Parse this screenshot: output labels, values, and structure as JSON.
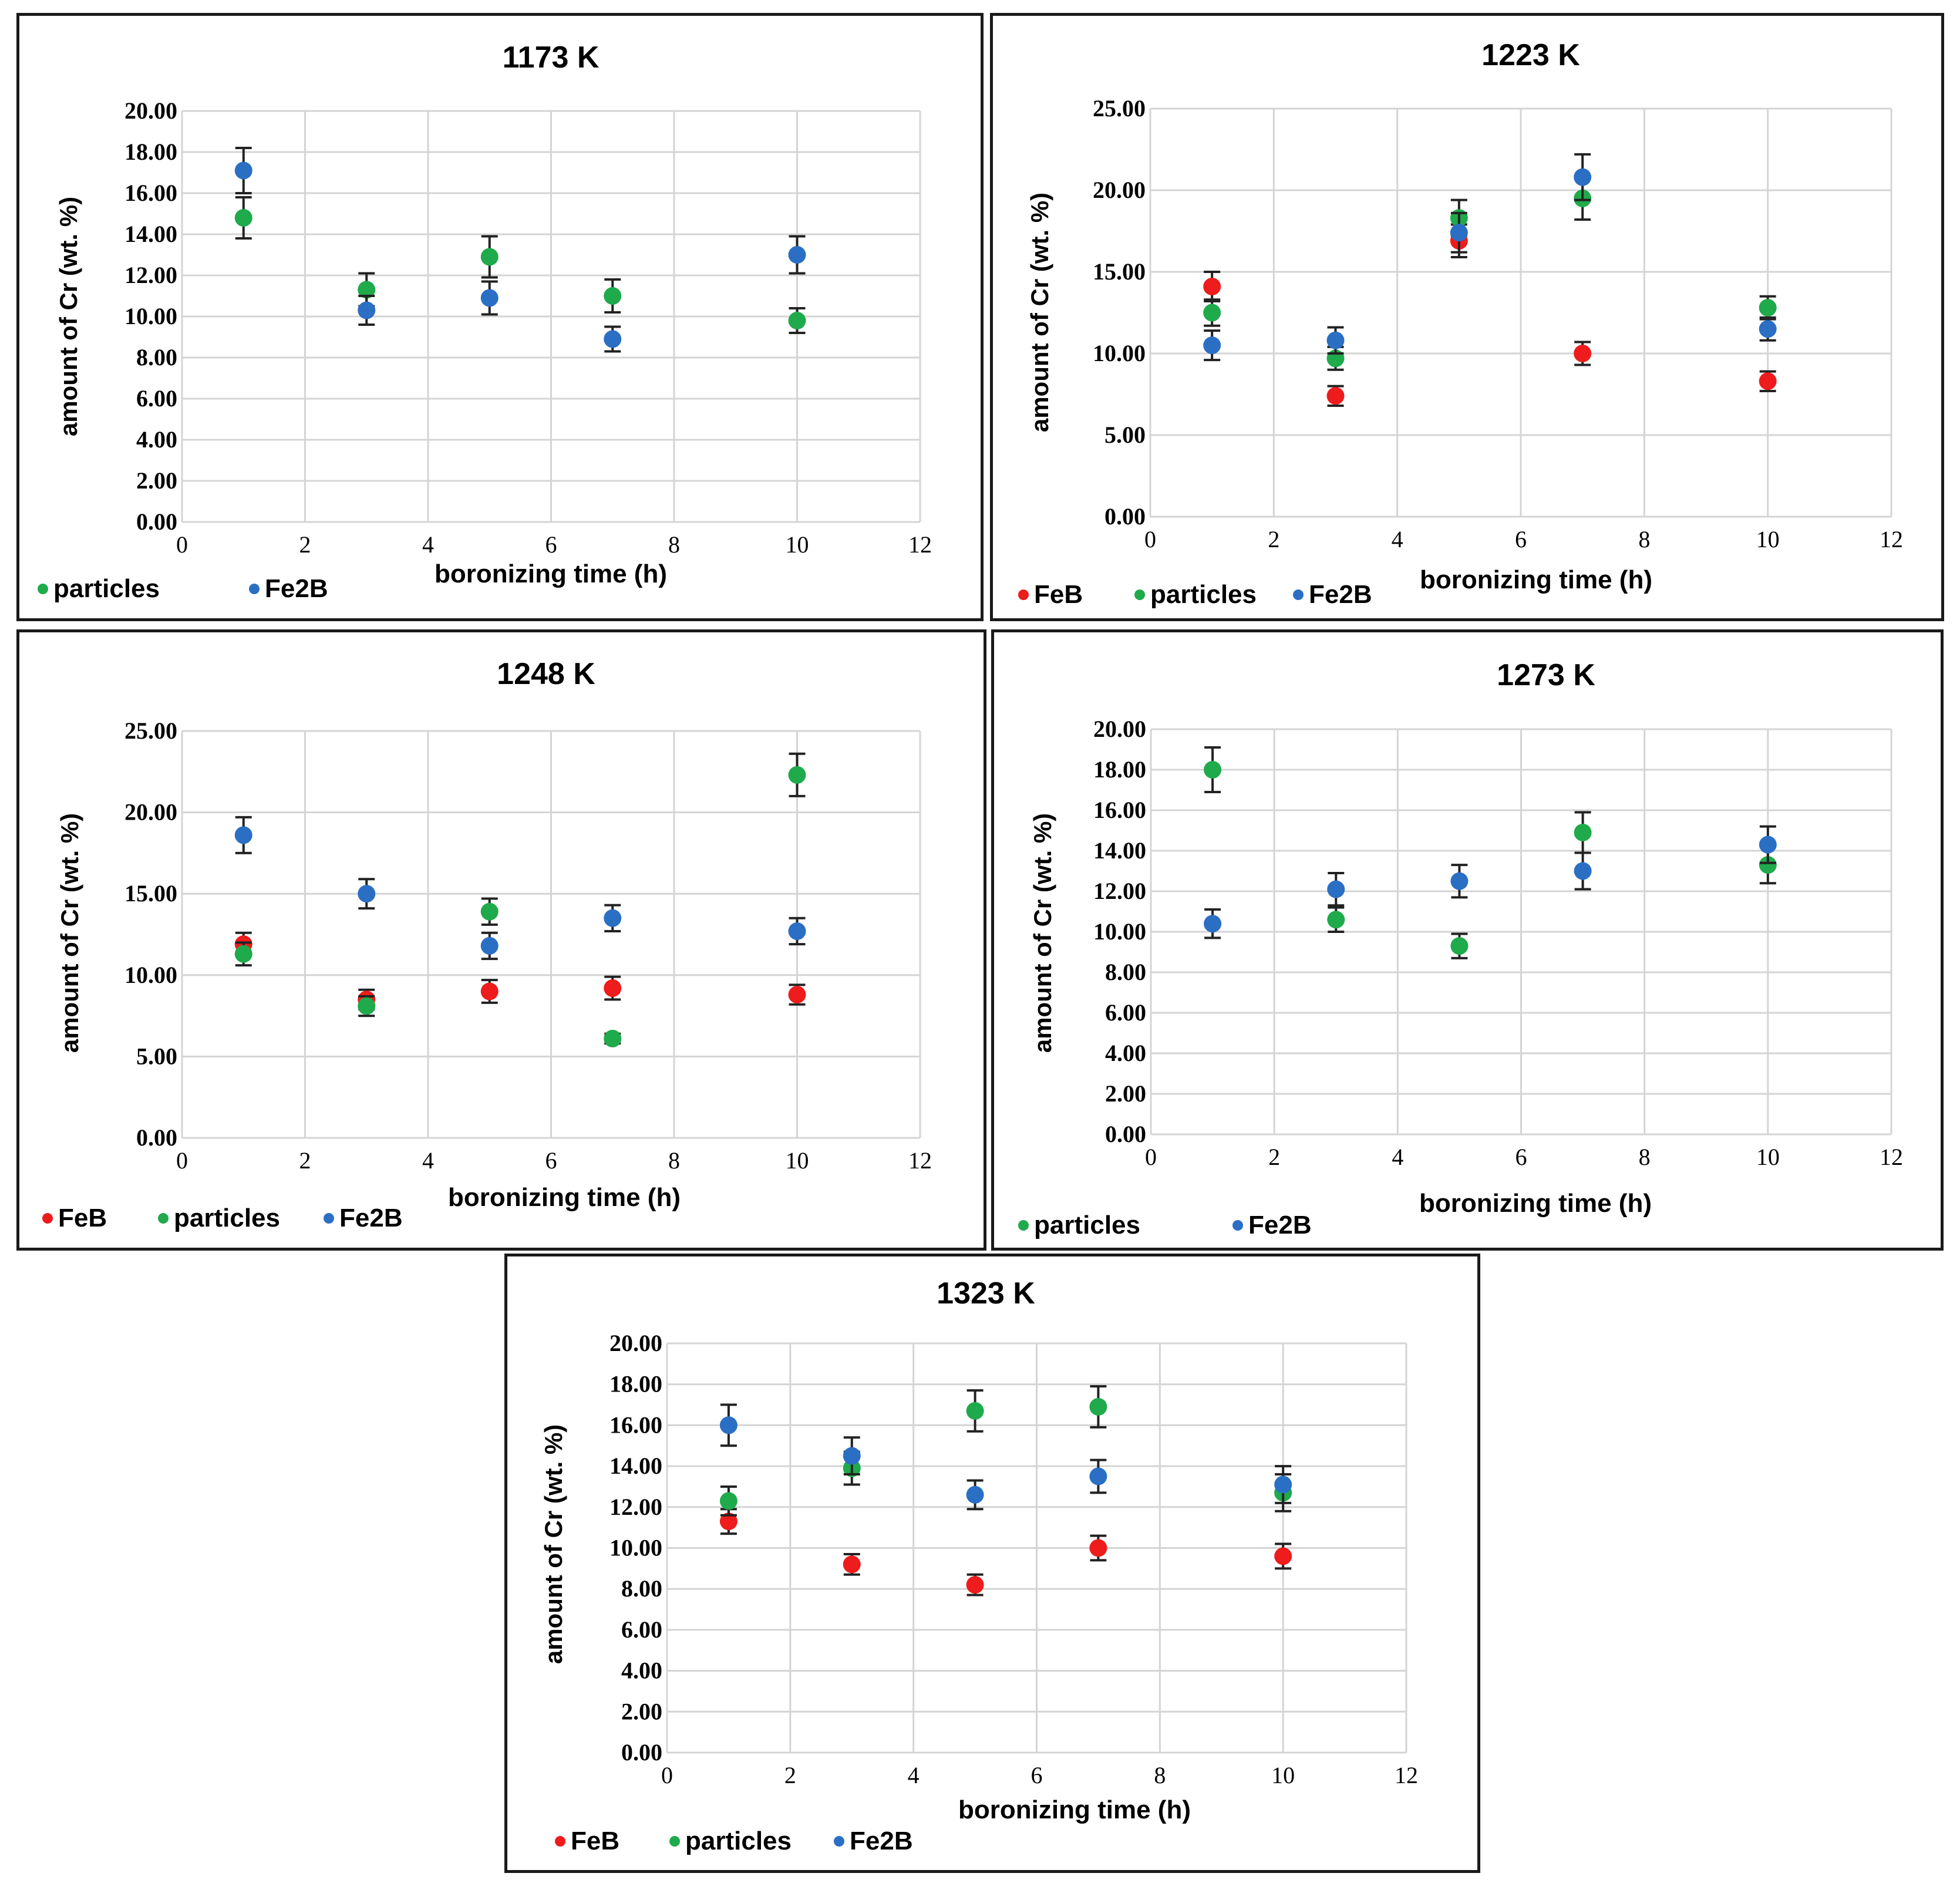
{
  "colors": {
    "FeB": "#ee1c1c",
    "particles": "#1faa4b",
    "Fe2B": "#2a6fc4"
  },
  "chart_data": [
    {
      "type": "scatter",
      "title": "1173 K",
      "xlabel": "boronizing time (h)",
      "ylabel": "amount of Cr (wt. %)",
      "xlim": [
        0,
        12
      ],
      "ylim": [
        0,
        20
      ],
      "xticks": [
        0,
        2,
        4,
        6,
        8,
        10,
        12
      ],
      "xtick_labels": [
        "0",
        "2",
        "4",
        "6",
        "8",
        "10",
        "12"
      ],
      "yticks": [
        0,
        2,
        4,
        6,
        8,
        10,
        12,
        14,
        16,
        18,
        20
      ],
      "ytick_labels": [
        "0.00",
        "2.00",
        "4.00",
        "6.00",
        "8.00",
        "10.00",
        "12.00",
        "14.00",
        "16.00",
        "18.00",
        "20.00"
      ],
      "legend": [
        "particles",
        "Fe2B"
      ],
      "series": [
        {
          "name": "particles",
          "x": [
            1,
            3,
            5,
            7,
            10
          ],
          "y": [
            14.8,
            11.3,
            12.9,
            11.0,
            9.8
          ],
          "err": [
            1.0,
            0.8,
            1.0,
            0.8,
            0.6
          ]
        },
        {
          "name": "Fe2B",
          "x": [
            1,
            3,
            5,
            7,
            10
          ],
          "y": [
            17.1,
            10.3,
            10.9,
            8.9,
            13.0
          ],
          "err": [
            1.1,
            0.7,
            0.8,
            0.6,
            0.9
          ]
        }
      ]
    },
    {
      "type": "scatter",
      "title": "1223 K",
      "xlabel": "boronizing time (h)",
      "ylabel": "amount of Cr (wt. %)",
      "xlim": [
        0,
        12
      ],
      "ylim": [
        0,
        25
      ],
      "xticks": [
        0,
        2,
        4,
        6,
        8,
        10,
        12
      ],
      "xtick_labels": [
        "0",
        "2",
        "4",
        "6",
        "8",
        "10",
        "12"
      ],
      "yticks": [
        0,
        5,
        10,
        15,
        20,
        25
      ],
      "ytick_labels": [
        "0.00",
        "5.00",
        "10.00",
        "15.00",
        "20.00",
        "25.00"
      ],
      "legend": [
        "FeB",
        "particles",
        "Fe2B"
      ],
      "series": [
        {
          "name": "FeB",
          "x": [
            1,
            3,
            5,
            7,
            10
          ],
          "y": [
            14.1,
            7.4,
            16.9,
            10.0,
            8.3
          ],
          "err": [
            0.9,
            0.6,
            1.0,
            0.7,
            0.6
          ]
        },
        {
          "name": "particles",
          "x": [
            1,
            3,
            5,
            7,
            10
          ],
          "y": [
            12.5,
            9.7,
            18.3,
            19.5,
            12.8
          ],
          "err": [
            0.8,
            0.7,
            1.1,
            1.3,
            0.7
          ]
        },
        {
          "name": "Fe2B",
          "x": [
            1,
            3,
            5,
            7,
            10
          ],
          "y": [
            10.5,
            10.8,
            17.4,
            20.8,
            11.5
          ],
          "err": [
            0.9,
            0.8,
            1.2,
            1.4,
            0.7
          ]
        }
      ]
    },
    {
      "type": "scatter",
      "title": "1248 K",
      "xlabel": "boronizing time (h)",
      "ylabel": "amount of Cr (wt. %)",
      "xlim": [
        0,
        12
      ],
      "ylim": [
        0,
        25
      ],
      "xticks": [
        0,
        2,
        4,
        6,
        8,
        10,
        12
      ],
      "xtick_labels": [
        "0",
        "2",
        "4",
        "6",
        "8",
        "10",
        "12"
      ],
      "yticks": [
        0,
        5,
        10,
        15,
        20,
        25
      ],
      "ytick_labels": [
        "0.00",
        "5.00",
        "10.00",
        "15.00",
        "20.00",
        "25.00"
      ],
      "legend": [
        "FeB",
        "particles",
        "Fe2B"
      ],
      "series": [
        {
          "name": "FeB",
          "x": [
            1,
            3,
            5,
            7,
            10
          ],
          "y": [
            11.9,
            8.5,
            9.0,
            9.2,
            8.8
          ],
          "err": [
            0.7,
            0.6,
            0.7,
            0.7,
            0.6
          ]
        },
        {
          "name": "particles",
          "x": [
            1,
            3,
            5,
            7,
            10
          ],
          "y": [
            11.3,
            8.1,
            13.9,
            6.1,
            22.3
          ],
          "err": [
            0.7,
            0.6,
            0.8,
            0.3,
            1.3
          ]
        },
        {
          "name": "Fe2B",
          "x": [
            1,
            3,
            5,
            7,
            10
          ],
          "y": [
            18.6,
            15.0,
            11.8,
            13.5,
            12.7
          ],
          "err": [
            1.1,
            0.9,
            0.8,
            0.8,
            0.8
          ]
        }
      ]
    },
    {
      "type": "scatter",
      "title": "1273 K",
      "xlabel": "boronizing time (h)",
      "ylabel": "amount of Cr (wt. %)",
      "xlim": [
        0,
        12
      ],
      "ylim": [
        0,
        20
      ],
      "xticks": [
        0,
        2,
        4,
        6,
        8,
        10,
        12
      ],
      "xtick_labels": [
        "0",
        "2",
        "4",
        "6",
        "8",
        "10",
        "12"
      ],
      "yticks": [
        0,
        2,
        4,
        6,
        8,
        10,
        12,
        14,
        16,
        18,
        20
      ],
      "ytick_labels": [
        "0.00",
        "2.00",
        "4.00",
        "6.00",
        "8.00",
        "10.00",
        "12.00",
        "14.00",
        "16.00",
        "18.00",
        "20.00"
      ],
      "legend": [
        "particles",
        "Fe2B"
      ],
      "series": [
        {
          "name": "particles",
          "x": [
            1,
            3,
            5,
            7,
            10
          ],
          "y": [
            18.0,
            10.6,
            9.3,
            14.9,
            13.3
          ],
          "err": [
            1.1,
            0.6,
            0.6,
            1.0,
            0.9
          ]
        },
        {
          "name": "Fe2B",
          "x": [
            1,
            3,
            5,
            7,
            10
          ],
          "y": [
            10.4,
            12.1,
            12.5,
            13.0,
            14.3
          ],
          "err": [
            0.7,
            0.8,
            0.8,
            0.9,
            0.9
          ]
        }
      ]
    },
    {
      "type": "scatter",
      "title": "1323 K",
      "xlabel": "boronizing time (h)",
      "ylabel": "amount of Cr (wt. %)",
      "xlim": [
        0,
        12
      ],
      "ylim": [
        0,
        20
      ],
      "xticks": [
        0,
        2,
        4,
        6,
        8,
        10,
        12
      ],
      "xtick_labels": [
        "0",
        "2",
        "4",
        "6",
        "8",
        "10",
        "12"
      ],
      "yticks": [
        0,
        2,
        4,
        6,
        8,
        10,
        12,
        14,
        16,
        18,
        20
      ],
      "ytick_labels": [
        "0.00",
        "2.00",
        "4.00",
        "6.00",
        "8.00",
        "10.00",
        "12.00",
        "14.00",
        "16.00",
        "18.00",
        "20.00"
      ],
      "legend": [
        "FeB",
        "particles",
        "Fe2B"
      ],
      "series": [
        {
          "name": "FeB",
          "x": [
            1,
            3,
            5,
            7,
            10
          ],
          "y": [
            11.3,
            9.2,
            8.2,
            10.0,
            9.6
          ],
          "err": [
            0.6,
            0.5,
            0.5,
            0.6,
            0.6
          ]
        },
        {
          "name": "particles",
          "x": [
            1,
            3,
            5,
            7,
            10
          ],
          "y": [
            12.3,
            13.9,
            16.7,
            16.9,
            12.7
          ],
          "err": [
            0.7,
            0.8,
            1.0,
            1.0,
            0.9
          ]
        },
        {
          "name": "Fe2B",
          "x": [
            1,
            3,
            5,
            7,
            10
          ],
          "y": [
            16.0,
            14.5,
            12.6,
            13.5,
            13.1
          ],
          "err": [
            1.0,
            0.9,
            0.7,
            0.8,
            0.9
          ]
        }
      ]
    }
  ]
}
